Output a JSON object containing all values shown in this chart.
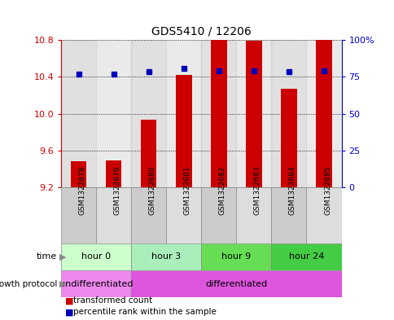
{
  "title": "GDS5410 / 12206",
  "samples": [
    "GSM1322678",
    "GSM1322679",
    "GSM1322680",
    "GSM1322681",
    "GSM1322682",
    "GSM1322683",
    "GSM1322684",
    "GSM1322685"
  ],
  "bar_values": [
    9.48,
    9.49,
    9.93,
    10.42,
    10.8,
    10.79,
    10.27,
    10.8
  ],
  "bar_base": 9.2,
  "percentile_values": [
    10.43,
    10.43,
    10.455,
    10.49,
    10.468,
    10.468,
    10.455,
    10.468
  ],
  "ylim_left": [
    9.2,
    10.8
  ],
  "ylim_right": [
    0,
    100
  ],
  "yticks_left": [
    9.2,
    9.6,
    10.0,
    10.4,
    10.8
  ],
  "yticks_right": [
    0,
    25,
    50,
    75,
    100
  ],
  "ytick_labels_right": [
    "0",
    "25",
    "50",
    "75",
    "100%"
  ],
  "bar_color": "#cc0000",
  "dot_color": "#0000bb",
  "grid_color": "#000000",
  "sample_bg_odd": "#cccccc",
  "sample_bg_even": "#dddddd",
  "time_groups": [
    {
      "label": "hour 0",
      "start": 0,
      "end": 1,
      "color": "#ccffcc"
    },
    {
      "label": "hour 3",
      "start": 2,
      "end": 3,
      "color": "#99ee99"
    },
    {
      "label": "hour 9",
      "start": 4,
      "end": 5,
      "color": "#66dd55"
    },
    {
      "label": "hour 24",
      "start": 6,
      "end": 7,
      "color": "#44cc44"
    }
  ],
  "protocol_groups": [
    {
      "label": "undifferentiated",
      "start": 0,
      "end": 1,
      "color": "#ee88ee"
    },
    {
      "label": "differentiated",
      "start": 2,
      "end": 7,
      "color": "#cc55cc"
    }
  ],
  "legend_bar_label": "transformed count",
  "legend_dot_label": "percentile rank within the sample",
  "time_label": "time",
  "protocol_label": "growth protocol",
  "title_color": "#000000",
  "left_axis_color": "#cc0000",
  "right_axis_color": "#0000cc",
  "bar_width": 0.45
}
